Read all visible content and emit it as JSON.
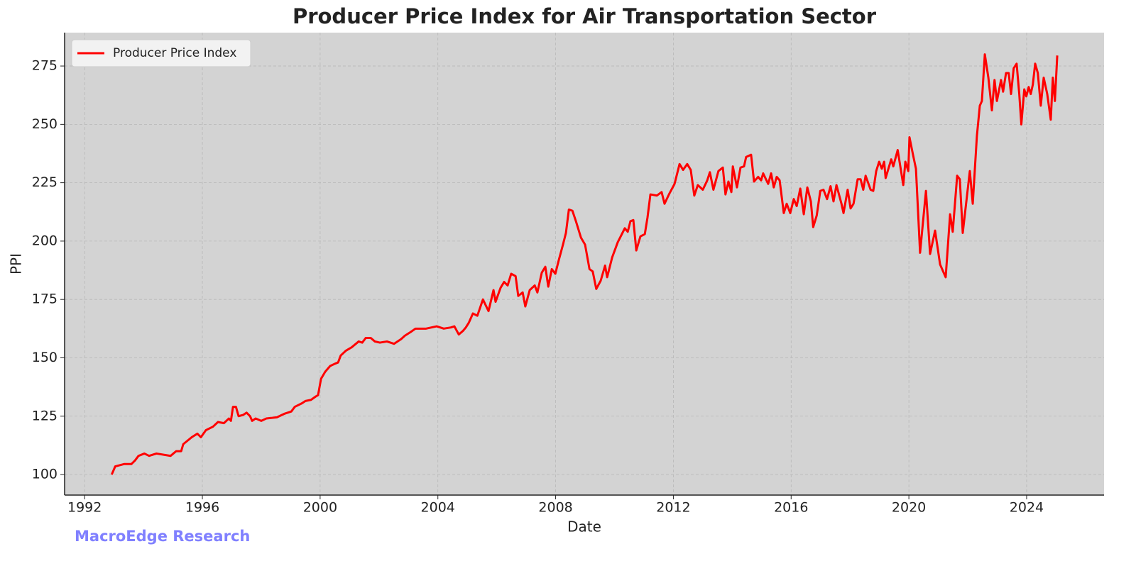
{
  "chart_data": {
    "type": "line",
    "title": "Producer Price Index for Air Transportation Sector",
    "xlabel": "Date",
    "ylabel": "PPI",
    "annotation": "MacroEdge Research",
    "legend": "upper left",
    "grid": true,
    "xlim": [
      1991.32,
      2026.63
    ],
    "ylim": [
      91.2,
      289.3
    ],
    "xticks": [
      1992,
      1996,
      2000,
      2004,
      2008,
      2012,
      2016,
      2020,
      2024
    ],
    "yticks": [
      100,
      125,
      150,
      175,
      200,
      225,
      250,
      275
    ],
    "x": [
      1992.92,
      1993.04,
      1993.35,
      1993.59,
      1993.71,
      1993.83,
      1994.03,
      1994.19,
      1994.44,
      1994.92,
      1995.11,
      1995.28,
      1995.35,
      1995.64,
      1995.83,
      1995.95,
      1996.12,
      1996.36,
      1996.53,
      1996.73,
      1996.9,
      1996.97,
      1997.04,
      1997.14,
      1997.23,
      1997.38,
      1997.5,
      1997.62,
      1997.69,
      1997.81,
      1998.0,
      1998.17,
      1998.53,
      1998.78,
      1999.02,
      1999.14,
      1999.38,
      1999.5,
      1999.69,
      1999.86,
      1999.93,
      2000.03,
      2000.17,
      2000.34,
      2000.51,
      2000.61,
      2000.7,
      2000.87,
      2001.07,
      2001.31,
      2001.43,
      2001.55,
      2001.72,
      2001.86,
      2002.03,
      2002.27,
      2002.51,
      2002.75,
      2002.88,
      2003.07,
      2003.24,
      2003.6,
      2003.96,
      2004.2,
      2004.44,
      2004.56,
      2004.71,
      2004.85,
      2004.95,
      2005.05,
      2005.19,
      2005.34,
      2005.53,
      2005.72,
      2005.89,
      2005.96,
      2006.13,
      2006.25,
      2006.37,
      2006.49,
      2006.64,
      2006.73,
      2006.88,
      2006.97,
      2007.12,
      2007.29,
      2007.38,
      2007.53,
      2007.65,
      2007.75,
      2007.87,
      2007.99,
      2008.11,
      2008.25,
      2008.35,
      2008.45,
      2008.57,
      2008.69,
      2008.86,
      2009.0,
      2009.15,
      2009.26,
      2009.38,
      2009.53,
      2009.68,
      2009.75,
      2009.92,
      2010.11,
      2010.25,
      2010.35,
      2010.45,
      2010.54,
      2010.64,
      2010.74,
      2010.88,
      2011.03,
      2011.12,
      2011.22,
      2011.44,
      2011.6,
      2011.7,
      2011.85,
      2012.04,
      2012.21,
      2012.33,
      2012.47,
      2012.59,
      2012.71,
      2012.83,
      2013.0,
      2013.15,
      2013.24,
      2013.36,
      2013.53,
      2013.68,
      2013.77,
      2013.87,
      2013.97,
      2014.02,
      2014.16,
      2014.28,
      2014.4,
      2014.47,
      2014.64,
      2014.74,
      2014.88,
      2014.98,
      2015.05,
      2015.22,
      2015.32,
      2015.41,
      2015.51,
      2015.61,
      2015.75,
      2015.85,
      2015.97,
      2016.09,
      2016.19,
      2016.31,
      2016.43,
      2016.55,
      2016.67,
      2016.75,
      2016.87,
      2016.99,
      2017.1,
      2017.22,
      2017.34,
      2017.44,
      2017.54,
      2017.71,
      2017.78,
      2017.92,
      2018.02,
      2018.12,
      2018.26,
      2018.36,
      2018.45,
      2018.53,
      2018.7,
      2018.79,
      2018.89,
      2018.99,
      2019.08,
      2019.16,
      2019.21,
      2019.4,
      2019.47,
      2019.62,
      2019.81,
      2019.88,
      2019.98,
      2020.02,
      2020.14,
      2020.24,
      2020.38,
      2020.58,
      2020.72,
      2020.89,
      2021.06,
      2021.25,
      2021.4,
      2021.49,
      2021.64,
      2021.73,
      2021.83,
      2022.07,
      2022.17,
      2022.31,
      2022.41,
      2022.48,
      2022.58,
      2022.7,
      2022.82,
      2022.91,
      2022.99,
      2023.13,
      2023.2,
      2023.3,
      2023.39,
      2023.47,
      2023.56,
      2023.66,
      2023.75,
      2023.82,
      2023.92,
      2023.99,
      2024.07,
      2024.14,
      2024.21,
      2024.29,
      2024.38,
      2024.48,
      2024.58,
      2024.7,
      2024.82,
      2024.89,
      2024.96,
      2025.04
    ],
    "series": [
      {
        "name": "Producer Price Index",
        "color": "#ff0000",
        "values": [
          100,
          103.5,
          104.5,
          104.5,
          106,
          108,
          109,
          108,
          109,
          108,
          110,
          110,
          113,
          116,
          117.5,
          116,
          119,
          120.5,
          122.5,
          122,
          124,
          123,
          129,
          129,
          125,
          125.5,
          126.5,
          125,
          123,
          124,
          123,
          124,
          124.5,
          126,
          127,
          129,
          130.5,
          131.5,
          132,
          133.5,
          134,
          141,
          144,
          146.5,
          147.5,
          148,
          151,
          153,
          154.5,
          157,
          156.5,
          158.5,
          158.5,
          157,
          156.5,
          157,
          156,
          158,
          159.5,
          161,
          162.5,
          162.5,
          163.5,
          162.5,
          163,
          163.5,
          160,
          161.5,
          163,
          165,
          169,
          168,
          175,
          170,
          179,
          174,
          180,
          182.5,
          181,
          186,
          185,
          176.5,
          178,
          172,
          179,
          181,
          178,
          186.5,
          189,
          180.5,
          188,
          186,
          192,
          198.5,
          203.5,
          213.5,
          213,
          208.5,
          201.5,
          198.5,
          188,
          187,
          179.5,
          183,
          189.5,
          184.5,
          193,
          199.5,
          203,
          205.5,
          204,
          208.5,
          209,
          196,
          202,
          203,
          210,
          220,
          219.5,
          221,
          216,
          220,
          224.5,
          233,
          230.5,
          233,
          230.5,
          219.5,
          224,
          222,
          226,
          229.5,
          222,
          230,
          231.5,
          220,
          225.5,
          221,
          232,
          223,
          231.5,
          232,
          236,
          237,
          225.5,
          227.5,
          226,
          229,
          224.5,
          229,
          223,
          227.5,
          226,
          212,
          216,
          212,
          218,
          215,
          222.5,
          211.5,
          223,
          217,
          206,
          211,
          221.5,
          222,
          218,
          223.5,
          217,
          224,
          216,
          212,
          222,
          214,
          216,
          226.5,
          226.5,
          222,
          228,
          222,
          221.5,
          230,
          234,
          231,
          234,
          227,
          235,
          232,
          239,
          224,
          234,
          230,
          244.5,
          237,
          231,
          195,
          221.5,
          194.5,
          204.5,
          190,
          184.5,
          211.5,
          204,
          228,
          226.5,
          203.5,
          230,
          216,
          245,
          258,
          260,
          280,
          270,
          256,
          269,
          260,
          269,
          264,
          272,
          272,
          263,
          274,
          276,
          263,
          250,
          265,
          262,
          266,
          263,
          267,
          276,
          272,
          258,
          270,
          263,
          252,
          270,
          260,
          279.5
        ]
      }
    ]
  }
}
